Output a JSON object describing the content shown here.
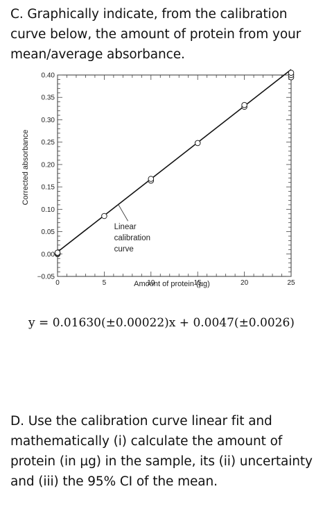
{
  "part_c": {
    "text": "C. Graphically indicate, from the calibration curve below, the amount of protein from your mean/average absorbance."
  },
  "equation": {
    "text": "y = 0.01630(±0.00022)x + 0.0047(±0.0026)"
  },
  "part_d": {
    "text": "D. Use the calibration curve linear fit and mathematically (i) calculate the amount of protein (in µg) in the sample, its (ii) uncertainty and (iii) the 95% CI of the mean."
  },
  "chart_data": {
    "type": "scatter",
    "xlabel": "Amount of protein (µg)",
    "ylabel": "Corrected absorbance",
    "xlim": [
      0,
      25
    ],
    "ylim": [
      -0.05,
      0.4
    ],
    "x_ticks": [
      "0",
      "5",
      "10",
      "15",
      "20",
      "25"
    ],
    "y_ticks": [
      "−0.05",
      "0.00",
      "0.05",
      "0.10",
      "0.15",
      "0.20",
      "0.25",
      "0.30",
      "0.35",
      "0.40"
    ],
    "grid": false,
    "points": [
      {
        "x": 0,
        "y": 0.0
      },
      {
        "x": 0,
        "y": 0.001
      },
      {
        "x": 0,
        "y": 0.003
      },
      {
        "x": 5,
        "y": 0.085
      },
      {
        "x": 10,
        "y": 0.164
      },
      {
        "x": 10,
        "y": 0.168
      },
      {
        "x": 15,
        "y": 0.248
      },
      {
        "x": 20,
        "y": 0.329
      },
      {
        "x": 20,
        "y": 0.333
      },
      {
        "x": 25,
        "y": 0.395
      },
      {
        "x": 25,
        "y": 0.4
      },
      {
        "x": 25,
        "y": 0.405
      }
    ],
    "fit_line": {
      "slope": 0.0163,
      "intercept": 0.0047
    },
    "annotation": {
      "lines": [
        "Linear",
        "calibration",
        "curve"
      ],
      "points_to": {
        "x": 6.5,
        "y": 0.111
      }
    }
  }
}
